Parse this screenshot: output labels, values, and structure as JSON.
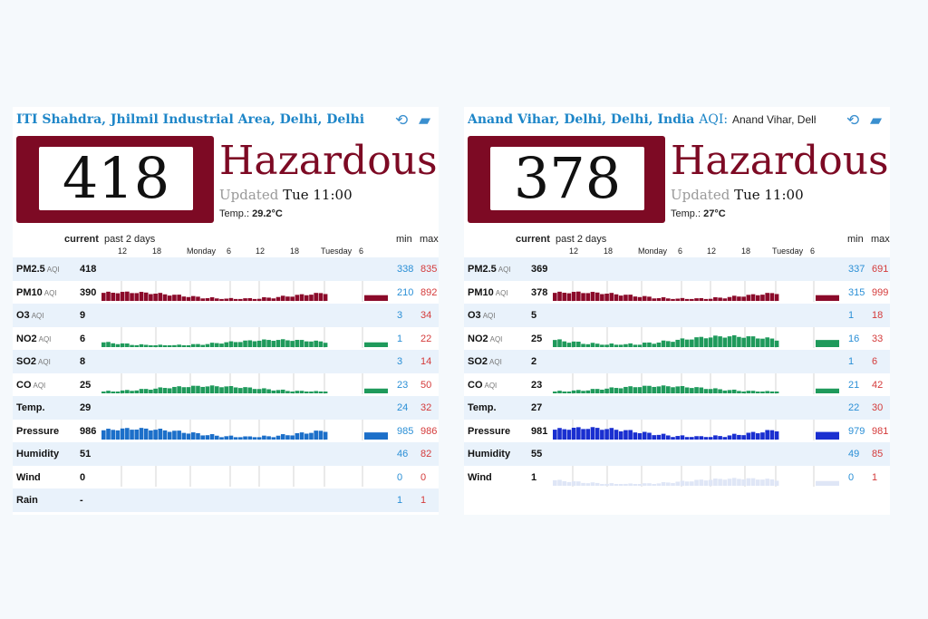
{
  "stations": [
    {
      "title": "ITI Shahdra, Jhilmil Industrial Area, Delhi, Delhi, India",
      "aqi_label": "",
      "subtitle": "",
      "aqi": "418",
      "level": "Hazardous",
      "updated_label": "Updated",
      "updated_time": "Tue 11:00",
      "temp_label": "Temp.:",
      "temp_value": "29.2°C",
      "header": {
        "current": "current",
        "past": "past 2 days",
        "min": "min",
        "max": "max"
      },
      "axis_ticks": [
        "12",
        "18",
        "Monday",
        "6",
        "12",
        "18",
        "Tuesday",
        "6"
      ],
      "rows": [
        {
          "label": "PM2.5",
          "sub": "AQI",
          "current": "418",
          "min": "338",
          "max": "835",
          "color": "#8b0a2a",
          "level": 0.75
        },
        {
          "label": "PM10",
          "sub": "AQI",
          "current": "390",
          "min": "210",
          "max": "892",
          "color": "#8b0a2a",
          "level": 0.6
        },
        {
          "label": "O3",
          "sub": "AQI",
          "current": "9",
          "min": "3",
          "max": "34",
          "color": "#1f9a5b",
          "level": 0.45
        },
        {
          "label": "NO2",
          "sub": "AQI",
          "current": "6",
          "min": "1",
          "max": "22",
          "color": "#1f9a5b",
          "level": 0.5
        },
        {
          "label": "SO2",
          "sub": "AQI",
          "current": "8",
          "min": "3",
          "max": "14",
          "color": "#1f9a5b",
          "level": 0.5
        },
        {
          "label": "CO",
          "sub": "AQI",
          "current": "25",
          "min": "23",
          "max": "50",
          "color": "#1f9a5b",
          "level": 0.5
        },
        {
          "label": "Temp.",
          "sub": "",
          "current": "29",
          "min": "24",
          "max": "32",
          "color": "#f0c020",
          "level": 0.45
        },
        {
          "label": "Pressure",
          "sub": "",
          "current": "986",
          "min": "985",
          "max": "986",
          "color": "#1c6fc9",
          "level": 0.75
        },
        {
          "label": "Humidity",
          "sub": "",
          "current": "51",
          "min": "46",
          "max": "82",
          "color": "#7d9ac0",
          "level": 0.6
        },
        {
          "label": "Wind",
          "sub": "",
          "current": "0",
          "min": "0",
          "max": "0",
          "color": "#c9d8ee",
          "level": 0
        },
        {
          "label": "Rain",
          "sub": "",
          "current": "-",
          "min": "1",
          "max": "1",
          "color": "#c9d8ee",
          "level": 0
        }
      ]
    },
    {
      "title": "Anand Vihar, Delhi, Delhi, India",
      "aqi_label": "AQI:",
      "subtitle": "Anand Vihar, Delhi",
      "aqi": "378",
      "level": "Hazardous",
      "updated_label": "Updated",
      "updated_time": "Tue 11:00",
      "temp_label": "Temp.:",
      "temp_value": "27°C",
      "header": {
        "current": "current",
        "past": "past 2 days",
        "min": "min",
        "max": "max"
      },
      "axis_ticks": [
        "12",
        "18",
        "Monday",
        "6",
        "12",
        "18",
        "Tuesday",
        "6"
      ],
      "rows": [
        {
          "label": "PM2.5",
          "sub": "AQI",
          "current": "369",
          "min": "337",
          "max": "691",
          "color": "#8b0a2a",
          "level": 0.75
        },
        {
          "label": "PM10",
          "sub": "AQI",
          "current": "378",
          "min": "315",
          "max": "999",
          "color": "#8b0a2a",
          "level": 0.6
        },
        {
          "label": "O3",
          "sub": "AQI",
          "current": "5",
          "min": "1",
          "max": "18",
          "color": "#1f9a5b",
          "level": 0.45
        },
        {
          "label": "NO2",
          "sub": "AQI",
          "current": "25",
          "min": "16",
          "max": "33",
          "color": "#1f9a5b",
          "level": 0.75
        },
        {
          "label": "SO2",
          "sub": "AQI",
          "current": "2",
          "min": "1",
          "max": "6",
          "color": "#1f9a5b",
          "level": 0.5
        },
        {
          "label": "CO",
          "sub": "AQI",
          "current": "23",
          "min": "21",
          "max": "42",
          "color": "#1f9a5b",
          "level": 0.5
        },
        {
          "label": "Temp.",
          "sub": "",
          "current": "27",
          "min": "22",
          "max": "30",
          "color": "#f0c020",
          "level": 0.45
        },
        {
          "label": "Pressure",
          "sub": "",
          "current": "981",
          "min": "979",
          "max": "981",
          "color": "#1a2fd0",
          "level": 0.8
        },
        {
          "label": "Humidity",
          "sub": "",
          "current": "55",
          "min": "49",
          "max": "85",
          "color": "#7d9ac0",
          "level": 0.7
        },
        {
          "label": "Wind",
          "sub": "",
          "current": "1",
          "min": "0",
          "max": "1",
          "color": "#dfe6f6",
          "level": 0.5
        }
      ]
    }
  ]
}
